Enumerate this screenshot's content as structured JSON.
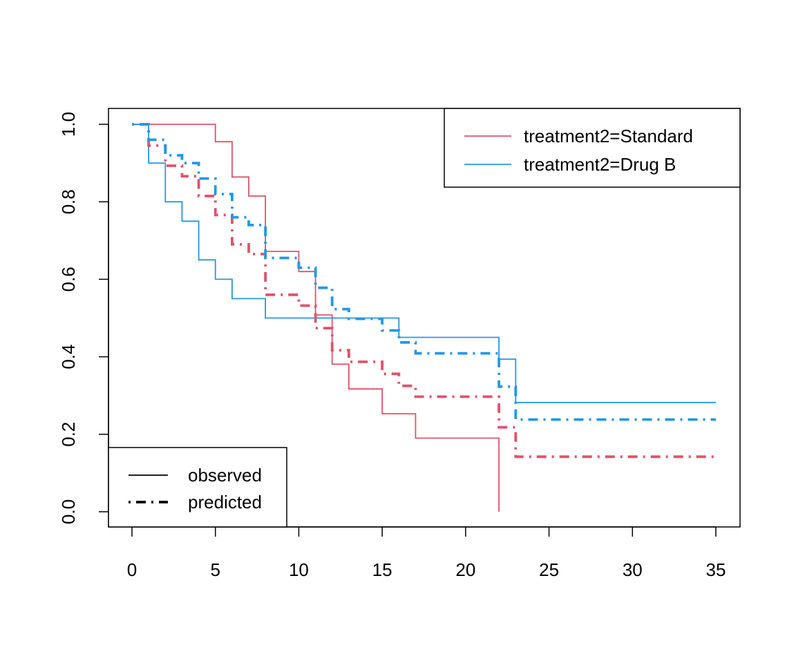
{
  "chart_data": {
    "type": "line",
    "line_shape": "step",
    "title": "",
    "xlabel": "",
    "ylabel": "",
    "xlim": [
      0,
      35
    ],
    "ylim": [
      0,
      1
    ],
    "x_ticks": [
      "0",
      "5",
      "10",
      "15",
      "20",
      "25",
      "30",
      "35"
    ],
    "y_ticks": [
      "0.0",
      "0.2",
      "0.4",
      "0.6",
      "0.8",
      "1.0"
    ],
    "grid": false,
    "series": [
      {
        "name": "treatment2=Standard",
        "kind": "observed",
        "color": "#DF536B",
        "points": [
          [
            0,
            1.0
          ],
          [
            5,
            1.0
          ],
          [
            5,
            0.955
          ],
          [
            6,
            0.955
          ],
          [
            6,
            0.864
          ],
          [
            7,
            0.864
          ],
          [
            7,
            0.815
          ],
          [
            8,
            0.815
          ],
          [
            8,
            0.672
          ],
          [
            10,
            0.672
          ],
          [
            10,
            0.62
          ],
          [
            11,
            0.62
          ],
          [
            11,
            0.508
          ],
          [
            12,
            0.508
          ],
          [
            12,
            0.381
          ],
          [
            13,
            0.381
          ],
          [
            13,
            0.317
          ],
          [
            15,
            0.317
          ],
          [
            15,
            0.253
          ],
          [
            17,
            0.253
          ],
          [
            17,
            0.19
          ],
          [
            22,
            0.19
          ],
          [
            22,
            0.0
          ]
        ]
      },
      {
        "name": "treatment2=Drug B",
        "kind": "observed",
        "color": "#2297E6",
        "points": [
          [
            0,
            1.0
          ],
          [
            1,
            1.0
          ],
          [
            1,
            0.9
          ],
          [
            2,
            0.9
          ],
          [
            2,
            0.8
          ],
          [
            3,
            0.8
          ],
          [
            3,
            0.75
          ],
          [
            4,
            0.75
          ],
          [
            4,
            0.65
          ],
          [
            5,
            0.65
          ],
          [
            5,
            0.6
          ],
          [
            6,
            0.6
          ],
          [
            6,
            0.55
          ],
          [
            8,
            0.55
          ],
          [
            8,
            0.5
          ],
          [
            16,
            0.5
          ],
          [
            16,
            0.45
          ],
          [
            22,
            0.45
          ],
          [
            22,
            0.394
          ],
          [
            23,
            0.394
          ],
          [
            23,
            0.282
          ],
          [
            35,
            0.282
          ]
        ]
      },
      {
        "name": "treatment2=Standard",
        "kind": "predicted",
        "color": "#DF536B",
        "points": [
          [
            0,
            1.0
          ],
          [
            1,
            1.0
          ],
          [
            1,
            0.945
          ],
          [
            2,
            0.945
          ],
          [
            2,
            0.893
          ],
          [
            3,
            0.893
          ],
          [
            3,
            0.866
          ],
          [
            4,
            0.866
          ],
          [
            4,
            0.815
          ],
          [
            5,
            0.815
          ],
          [
            5,
            0.766
          ],
          [
            6,
            0.766
          ],
          [
            6,
            0.69
          ],
          [
            7,
            0.69
          ],
          [
            7,
            0.665
          ],
          [
            8,
            0.665
          ],
          [
            8,
            0.56
          ],
          [
            10,
            0.56
          ],
          [
            10,
            0.532
          ],
          [
            11,
            0.532
          ],
          [
            11,
            0.474
          ],
          [
            12,
            0.474
          ],
          [
            12,
            0.417
          ],
          [
            13,
            0.417
          ],
          [
            13,
            0.387
          ],
          [
            15,
            0.387
          ],
          [
            15,
            0.356
          ],
          [
            16,
            0.356
          ],
          [
            16,
            0.325
          ],
          [
            17,
            0.325
          ],
          [
            17,
            0.297
          ],
          [
            22,
            0.297
          ],
          [
            22,
            0.218
          ],
          [
            23,
            0.218
          ],
          [
            23,
            0.142
          ],
          [
            35,
            0.142
          ]
        ]
      },
      {
        "name": "treatment2=Drug B",
        "kind": "predicted",
        "color": "#2297E6",
        "points": [
          [
            0,
            1.0
          ],
          [
            1,
            1.0
          ],
          [
            1,
            0.96
          ],
          [
            2,
            0.96
          ],
          [
            2,
            0.92
          ],
          [
            3,
            0.92
          ],
          [
            3,
            0.9
          ],
          [
            4,
            0.9
          ],
          [
            4,
            0.86
          ],
          [
            5,
            0.86
          ],
          [
            5,
            0.82
          ],
          [
            6,
            0.82
          ],
          [
            6,
            0.76
          ],
          [
            7,
            0.76
          ],
          [
            7,
            0.74
          ],
          [
            8,
            0.74
          ],
          [
            8,
            0.655
          ],
          [
            10,
            0.655
          ],
          [
            10,
            0.63
          ],
          [
            11,
            0.63
          ],
          [
            11,
            0.578
          ],
          [
            12,
            0.578
          ],
          [
            12,
            0.523
          ],
          [
            13,
            0.523
          ],
          [
            13,
            0.498
          ],
          [
            15,
            0.498
          ],
          [
            15,
            0.468
          ],
          [
            16,
            0.468
          ],
          [
            16,
            0.437
          ],
          [
            17,
            0.437
          ],
          [
            17,
            0.409
          ],
          [
            22,
            0.409
          ],
          [
            22,
            0.323
          ],
          [
            23,
            0.323
          ],
          [
            23,
            0.238
          ],
          [
            35,
            0.238
          ]
        ]
      }
    ],
    "legends": [
      {
        "placement": "top-right",
        "entries": [
          {
            "label": "treatment2=Standard",
            "color": "#DF536B",
            "style": "solid"
          },
          {
            "label": "treatment2=Drug B",
            "color": "#2297E6",
            "style": "solid"
          }
        ]
      },
      {
        "placement": "bottom-left",
        "entries": [
          {
            "label": "observed",
            "color": "#000000",
            "style": "solid"
          },
          {
            "label": "predicted",
            "color": "#000000",
            "style": "dotdash"
          }
        ]
      }
    ]
  }
}
